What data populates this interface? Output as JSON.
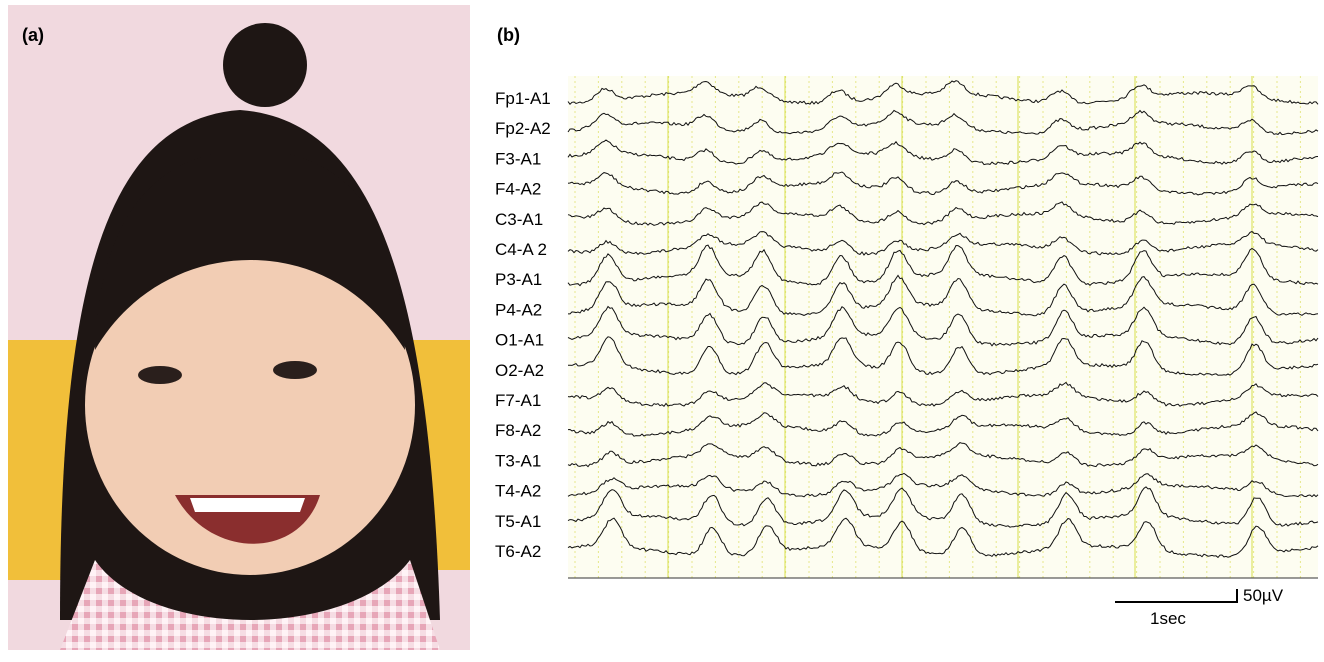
{
  "panels": {
    "a": {
      "label": "(a)"
    },
    "b": {
      "label": "(b)",
      "channels": [
        "Fp1-A1",
        "Fp2-A2",
        "F3-A1",
        "F4-A2",
        "C3-A1",
        "C4-A 2",
        "P3-A1",
        "P4-A2",
        "O1-A1",
        "O2-A2",
        "F7-A1",
        "F8-A2",
        "T3-A1",
        "T4-A2",
        "T5-A1",
        "T6-A2"
      ],
      "scale": {
        "time": "1sec",
        "amplitude": "50µV"
      }
    }
  }
}
